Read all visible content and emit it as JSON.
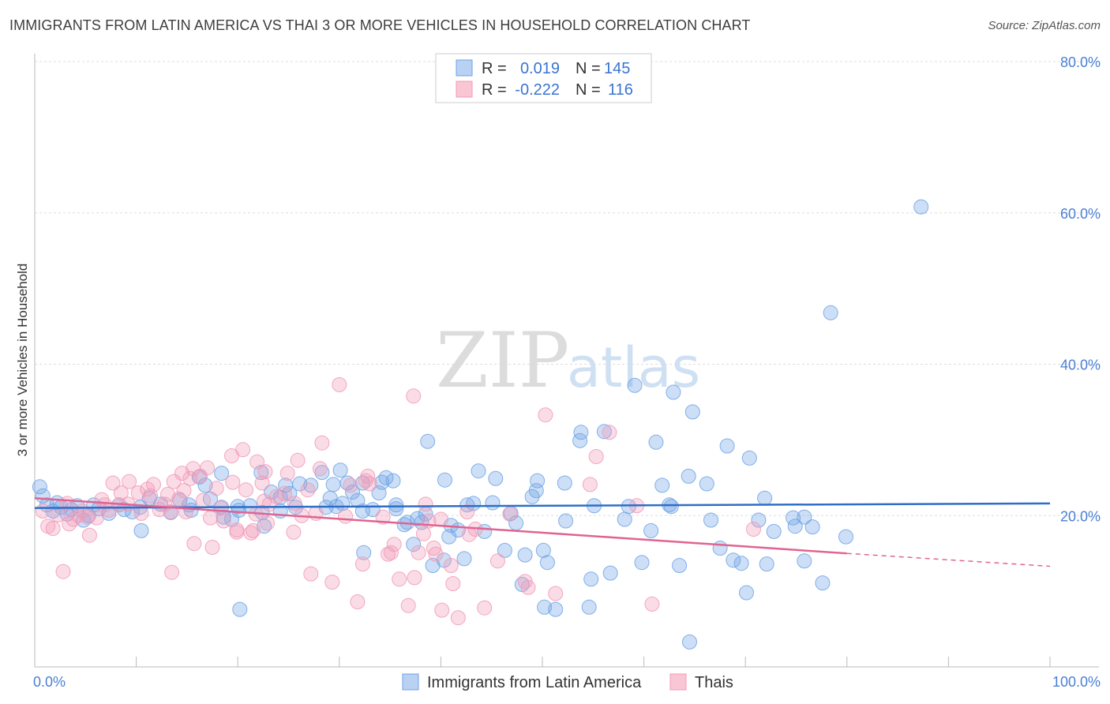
{
  "title": "IMMIGRANTS FROM LATIN AMERICA VS THAI 3 OR MORE VEHICLES IN HOUSEHOLD CORRELATION CHART",
  "source": "Source: ZipAtlas.com",
  "watermark": {
    "a": "ZIP",
    "b": "atlas"
  },
  "legend": {
    "r_label": "R =",
    "n_label": "N =",
    "series": [
      {
        "r": "0.019",
        "n": "145"
      },
      {
        "r": "-0.222",
        "n": "116"
      }
    ]
  },
  "chart_data": {
    "type": "scatter",
    "title": "IMMIGRANTS FROM LATIN AMERICA VS THAI 3 OR MORE VEHICLES IN HOUSEHOLD CORRELATION CHART",
    "xlabel": "",
    "ylabel": "3 or more Vehicles in Household",
    "xlim": [
      0,
      100
    ],
    "ylim": [
      0,
      80
    ],
    "x_tick_labels": [
      "0.0%",
      "100.0%"
    ],
    "y_ticks": [
      20,
      40,
      60,
      80
    ],
    "y_tick_labels": [
      "20.0%",
      "40.0%",
      "60.0%",
      "80.0%"
    ],
    "grid": true,
    "series": [
      {
        "name": "Immigrants from Latin America",
        "color": "#6fa3e6",
        "line_color": "#2f6ec6",
        "trend": {
          "x": [
            0,
            100
          ],
          "y": [
            21.0,
            21.6
          ]
        },
        "points": [
          [
            0.5,
            23.8
          ],
          [
            0.8,
            22.6
          ],
          [
            1.2,
            21.4
          ],
          [
            1.8,
            20.6
          ],
          [
            2.2,
            21.7
          ],
          [
            2.6,
            21.1
          ],
          [
            3.2,
            20.2
          ],
          [
            3.6,
            20.8
          ],
          [
            4.2,
            21.3
          ],
          [
            4.8,
            19.4
          ],
          [
            5.3,
            20.0
          ],
          [
            5.8,
            21.4
          ],
          [
            6.3,
            20.9
          ],
          [
            7.3,
            20.3
          ],
          [
            8.3,
            21.4
          ],
          [
            8.8,
            20.8
          ],
          [
            9.6,
            20.5
          ],
          [
            10.4,
            21.1
          ],
          [
            10.5,
            18.0
          ],
          [
            11.3,
            22.3
          ],
          [
            12.4,
            21.5
          ],
          [
            13.4,
            20.4
          ],
          [
            14.3,
            22.0
          ],
          [
            15.2,
            21.4
          ],
          [
            15.4,
            20.7
          ],
          [
            16.2,
            25.1
          ],
          [
            16.8,
            24.0
          ],
          [
            17.3,
            22.2
          ],
          [
            18.4,
            21.1
          ],
          [
            18.4,
            25.6
          ],
          [
            18.6,
            19.8
          ],
          [
            19.4,
            19.5
          ],
          [
            20.0,
            21.2
          ],
          [
            20.1,
            20.7
          ],
          [
            20.2,
            7.6
          ],
          [
            21.2,
            21.3
          ],
          [
            22.3,
            25.7
          ],
          [
            22.4,
            20.4
          ],
          [
            22.6,
            18.6
          ],
          [
            23.3,
            23.1
          ],
          [
            24.2,
            20.6
          ],
          [
            24.2,
            22.4
          ],
          [
            24.7,
            24.0
          ],
          [
            25.1,
            22.9
          ],
          [
            25.7,
            21.1
          ],
          [
            26.1,
            24.2
          ],
          [
            27.2,
            24.0
          ],
          [
            28.3,
            25.7
          ],
          [
            28.7,
            21.1
          ],
          [
            29.1,
            22.3
          ],
          [
            29.4,
            24.1
          ],
          [
            29.7,
            21.2
          ],
          [
            30.1,
            26.0
          ],
          [
            30.3,
            21.6
          ],
          [
            30.8,
            24.3
          ],
          [
            31.3,
            23.1
          ],
          [
            31.8,
            22.0
          ],
          [
            32.3,
            24.3
          ],
          [
            32.3,
            20.6
          ],
          [
            32.4,
            15.1
          ],
          [
            33.3,
            20.8
          ],
          [
            33.9,
            23.0
          ],
          [
            34.2,
            24.4
          ],
          [
            34.6,
            25.0
          ],
          [
            35.3,
            24.6
          ],
          [
            35.6,
            21.4
          ],
          [
            35.6,
            20.9
          ],
          [
            36.4,
            18.8
          ],
          [
            36.7,
            19.1
          ],
          [
            37.3,
            16.2
          ],
          [
            37.7,
            19.6
          ],
          [
            38.1,
            19.1
          ],
          [
            38.5,
            20.2
          ],
          [
            38.7,
            29.8
          ],
          [
            39.2,
            13.4
          ],
          [
            40.3,
            14.1
          ],
          [
            40.4,
            24.7
          ],
          [
            40.8,
            17.2
          ],
          [
            41.0,
            18.7
          ],
          [
            41.7,
            18.1
          ],
          [
            42.3,
            14.3
          ],
          [
            42.6,
            21.4
          ],
          [
            43.2,
            21.6
          ],
          [
            43.7,
            25.9
          ],
          [
            44.3,
            17.9
          ],
          [
            45.1,
            21.7
          ],
          [
            45.4,
            24.9
          ],
          [
            46.3,
            15.4
          ],
          [
            46.9,
            20.3
          ],
          [
            47.4,
            19.0
          ],
          [
            48.0,
            10.9
          ],
          [
            48.3,
            14.8
          ],
          [
            49.0,
            22.5
          ],
          [
            49.4,
            23.3
          ],
          [
            49.5,
            24.6
          ],
          [
            50.1,
            15.4
          ],
          [
            50.2,
            7.9
          ],
          [
            50.5,
            13.8
          ],
          [
            51.3,
            7.6
          ],
          [
            52.2,
            24.3
          ],
          [
            52.3,
            19.3
          ],
          [
            53.7,
            29.9
          ],
          [
            53.8,
            31.0
          ],
          [
            54.6,
            7.9
          ],
          [
            54.8,
            11.6
          ],
          [
            55.1,
            21.3
          ],
          [
            56.1,
            31.1
          ],
          [
            56.7,
            12.4
          ],
          [
            58.1,
            19.5
          ],
          [
            58.5,
            21.2
          ],
          [
            59.1,
            37.2
          ],
          [
            59.8,
            13.8
          ],
          [
            60.7,
            18.0
          ],
          [
            61.2,
            29.7
          ],
          [
            61.8,
            24.0
          ],
          [
            62.5,
            21.4
          ],
          [
            62.7,
            21.2
          ],
          [
            62.9,
            36.3
          ],
          [
            63.5,
            13.4
          ],
          [
            64.5,
            3.3
          ],
          [
            64.4,
            25.2
          ],
          [
            64.8,
            33.7
          ],
          [
            66.2,
            24.2
          ],
          [
            66.6,
            19.4
          ],
          [
            67.5,
            15.7
          ],
          [
            68.2,
            29.2
          ],
          [
            68.8,
            14.1
          ],
          [
            69.6,
            13.7
          ],
          [
            70.1,
            9.8
          ],
          [
            70.4,
            27.6
          ],
          [
            71.3,
            19.4
          ],
          [
            71.9,
            22.3
          ],
          [
            72.1,
            13.6
          ],
          [
            72.8,
            17.9
          ],
          [
            74.7,
            19.7
          ],
          [
            74.9,
            18.6
          ],
          [
            75.8,
            19.8
          ],
          [
            75.8,
            14.0
          ],
          [
            76.6,
            18.5
          ],
          [
            77.6,
            11.1
          ],
          [
            78.4,
            46.8
          ],
          [
            79.9,
            17.2
          ],
          [
            87.3,
            60.8
          ]
        ]
      },
      {
        "name": "Thais",
        "color": "#f29ab6",
        "line_color": "#e06491",
        "trend": {
          "x": [
            0,
            80
          ],
          "y": [
            22.3,
            15.0
          ]
        },
        "trend_dashed": {
          "x": [
            80,
            100
          ],
          "y": [
            15.0,
            13.3
          ]
        },
        "points": [
          [
            0.8,
            20.6
          ],
          [
            1.3,
            18.6
          ],
          [
            1.8,
            18.3
          ],
          [
            2.3,
            20.1
          ],
          [
            2.8,
            12.6
          ],
          [
            3.2,
            21.6
          ],
          [
            3.4,
            18.9
          ],
          [
            3.8,
            19.5
          ],
          [
            4.3,
            20.0
          ],
          [
            4.7,
            20.6
          ],
          [
            5.2,
            19.8
          ],
          [
            5.4,
            17.4
          ],
          [
            6.1,
            19.7
          ],
          [
            6.6,
            22.1
          ],
          [
            6.9,
            21.4
          ],
          [
            7.3,
            20.7
          ],
          [
            7.7,
            24.3
          ],
          [
            8.3,
            21.4
          ],
          [
            8.5,
            23.0
          ],
          [
            9.2,
            21.5
          ],
          [
            9.3,
            24.5
          ],
          [
            10.2,
            23.0
          ],
          [
            10.5,
            20.3
          ],
          [
            11.1,
            23.5
          ],
          [
            11.4,
            22.6
          ],
          [
            11.7,
            24.1
          ],
          [
            12.3,
            20.8
          ],
          [
            12.8,
            21.5
          ],
          [
            13.1,
            22.8
          ],
          [
            13.4,
            20.5
          ],
          [
            13.5,
            12.5
          ],
          [
            13.7,
            24.5
          ],
          [
            14.2,
            22.2
          ],
          [
            14.5,
            25.6
          ],
          [
            14.7,
            23.3
          ],
          [
            14.9,
            20.5
          ],
          [
            15.3,
            24.9
          ],
          [
            15.6,
            26.2
          ],
          [
            15.7,
            16.3
          ],
          [
            16.3,
            25.2
          ],
          [
            16.6,
            22.0
          ],
          [
            17.0,
            26.3
          ],
          [
            17.3,
            19.7
          ],
          [
            17.5,
            15.8
          ],
          [
            17.9,
            23.6
          ],
          [
            18.3,
            21.0
          ],
          [
            18.6,
            19.3
          ],
          [
            19.4,
            27.9
          ],
          [
            19.5,
            24.4
          ],
          [
            19.9,
            18.1
          ],
          [
            19.9,
            17.8
          ],
          [
            20.5,
            28.7
          ],
          [
            20.8,
            23.4
          ],
          [
            21.3,
            17.7
          ],
          [
            21.5,
            18.0
          ],
          [
            21.8,
            20.2
          ],
          [
            21.9,
            27.1
          ],
          [
            22.4,
            24.3
          ],
          [
            22.6,
            21.9
          ],
          [
            22.7,
            25.8
          ],
          [
            22.9,
            19.0
          ],
          [
            23.1,
            21.5
          ],
          [
            23.8,
            22.5
          ],
          [
            24.6,
            22.9
          ],
          [
            24.9,
            25.6
          ],
          [
            25.5,
            17.8
          ],
          [
            25.6,
            21.6
          ],
          [
            25.9,
            27.3
          ],
          [
            26.3,
            20.0
          ],
          [
            26.9,
            23.4
          ],
          [
            27.2,
            12.3
          ],
          [
            27.7,
            20.3
          ],
          [
            28.1,
            26.2
          ],
          [
            28.3,
            29.6
          ],
          [
            29.3,
            11.2
          ],
          [
            30.0,
            37.3
          ],
          [
            30.6,
            19.9
          ],
          [
            31.1,
            24.0
          ],
          [
            31.8,
            8.6
          ],
          [
            32.3,
            13.6
          ],
          [
            32.6,
            24.6
          ],
          [
            32.8,
            25.2
          ],
          [
            33.0,
            24.2
          ],
          [
            34.3,
            19.8
          ],
          [
            34.8,
            14.9
          ],
          [
            35.1,
            15.1
          ],
          [
            35.4,
            16.2
          ],
          [
            35.9,
            11.6
          ],
          [
            36.8,
            8.1
          ],
          [
            37.3,
            35.8
          ],
          [
            37.4,
            11.8
          ],
          [
            37.8,
            15.1
          ],
          [
            38.3,
            17.6
          ],
          [
            38.5,
            21.5
          ],
          [
            38.8,
            19.3
          ],
          [
            39.3,
            15.7
          ],
          [
            39.5,
            14.9
          ],
          [
            40.0,
            19.5
          ],
          [
            40.1,
            7.5
          ],
          [
            41.0,
            13.4
          ],
          [
            41.2,
            11.0
          ],
          [
            41.7,
            6.5
          ],
          [
            42.6,
            20.5
          ],
          [
            42.8,
            17.5
          ],
          [
            43.4,
            18.2
          ],
          [
            44.3,
            7.8
          ],
          [
            45.6,
            14.0
          ],
          [
            46.8,
            20.2
          ],
          [
            48.3,
            11.3
          ],
          [
            48.6,
            10.5
          ],
          [
            50.3,
            33.3
          ],
          [
            51.3,
            9.7
          ],
          [
            54.7,
            24.1
          ],
          [
            55.3,
            27.8
          ],
          [
            56.6,
            31.0
          ],
          [
            59.3,
            21.3
          ],
          [
            60.8,
            8.3
          ],
          [
            70.8,
            18.2
          ]
        ]
      }
    ]
  },
  "bottom_legend": {
    "items": [
      "Immigrants from Latin America",
      "Thais"
    ]
  }
}
